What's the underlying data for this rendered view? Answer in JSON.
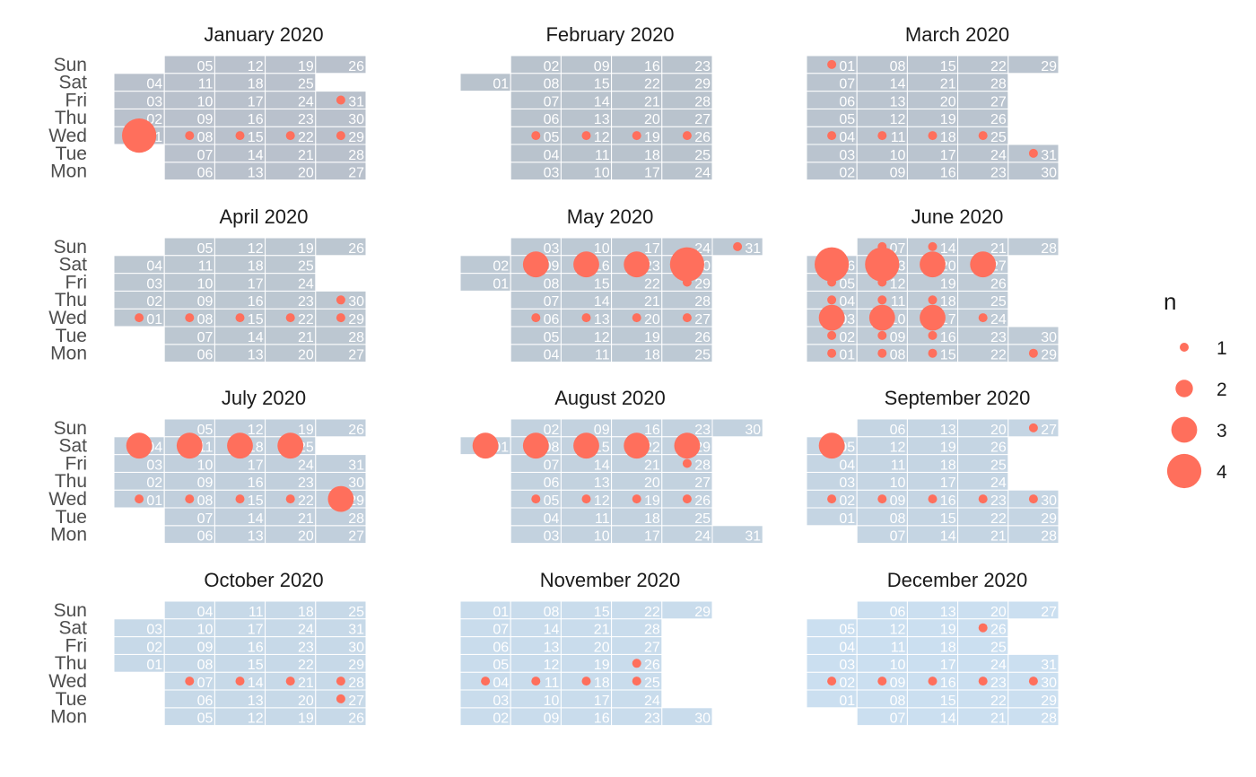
{
  "chart_data": {
    "type": "heatmap",
    "year": 2020,
    "weekday_labels": [
      "Sun",
      "Sat",
      "Fri",
      "Thu",
      "Wed",
      "Tue",
      "Mon"
    ],
    "months": [
      {
        "title": "January 2020",
        "color": "#b9c1cc",
        "days": 31,
        "start_weekday": 3,
        "events": {
          "1": 4,
          "8": 1,
          "15": 1,
          "22": 1,
          "29": 1,
          "31": 1
        }
      },
      {
        "title": "February 2020",
        "color": "#b9c3cd",
        "days": 29,
        "start_weekday": 6,
        "events": {
          "5": 1,
          "12": 1,
          "19": 1,
          "26": 1
        }
      },
      {
        "title": "March 2020",
        "color": "#bac4cf",
        "days": 31,
        "start_weekday": 0,
        "events": {
          "1": 1,
          "4": 1,
          "11": 1,
          "18": 1,
          "25": 1,
          "31": 1
        }
      },
      {
        "title": "April 2020",
        "color": "#bcc7d1",
        "days": 30,
        "start_weekday": 3,
        "events": {
          "1": 1,
          "8": 1,
          "15": 1,
          "22": 1,
          "29": 1,
          "30": 1
        }
      },
      {
        "title": "May 2020",
        "color": "#bdc9d4",
        "days": 31,
        "start_weekday": 5,
        "events": {
          "6": 1,
          "13": 1,
          "20": 1,
          "27": 1,
          "9": 3,
          "16": 3,
          "23": 3,
          "30": 4,
          "31": 1,
          "29": 1
        }
      },
      {
        "title": "June 2020",
        "color": "#bfcbd6",
        "days": 30,
        "start_weekday": 1,
        "events": {
          "1": 1,
          "2": 1,
          "3": 3,
          "4": 1,
          "5": 1,
          "6": 4,
          "7": 1,
          "8": 1,
          "9": 1,
          "10": 3,
          "11": 1,
          "12": 1,
          "13": 4,
          "14": 1,
          "15": 1,
          "16": 1,
          "17": 3,
          "18": 1,
          "20": 3,
          "24": 1,
          "27": 3,
          "29": 1
        }
      },
      {
        "title": "July 2020",
        "color": "#c1cfdc",
        "days": 31,
        "start_weekday": 3,
        "events": {
          "1": 1,
          "4": 3,
          "8": 1,
          "11": 3,
          "15": 1,
          "18": 3,
          "22": 1,
          "25": 3,
          "29": 3
        }
      },
      {
        "title": "August 2020",
        "color": "#c3d2df",
        "days": 31,
        "start_weekday": 6,
        "events": {
          "1": 3,
          "5": 1,
          "8": 3,
          "12": 1,
          "15": 3,
          "19": 1,
          "22": 3,
          "26": 1,
          "28": 1,
          "29": 3
        }
      },
      {
        "title": "September 2020",
        "color": "#c5d5e3",
        "days": 30,
        "start_weekday": 2,
        "events": {
          "2": 1,
          "5": 3,
          "9": 1,
          "16": 1,
          "23": 1,
          "27": 1,
          "30": 1
        }
      },
      {
        "title": "October 2020",
        "color": "#c7d9e8",
        "days": 31,
        "start_weekday": 4,
        "events": {
          "7": 1,
          "14": 1,
          "21": 1,
          "27": 1,
          "28": 1
        }
      },
      {
        "title": "November 2020",
        "color": "#c9dcec",
        "days": 30,
        "start_weekday": 0,
        "events": {
          "4": 1,
          "11": 1,
          "18": 1,
          "25": 1,
          "26": 1
        }
      },
      {
        "title": "December 2020",
        "color": "#cbdff0",
        "days": 31,
        "start_weekday": 2,
        "events": {
          "2": 1,
          "9": 1,
          "16": 1,
          "23": 1,
          "26": 1,
          "30": 1
        }
      }
    ],
    "point_color": "#ff6f5c",
    "legend": {
      "title": "n",
      "values": [
        1,
        2,
        3,
        4
      ],
      "placement": "right"
    }
  }
}
